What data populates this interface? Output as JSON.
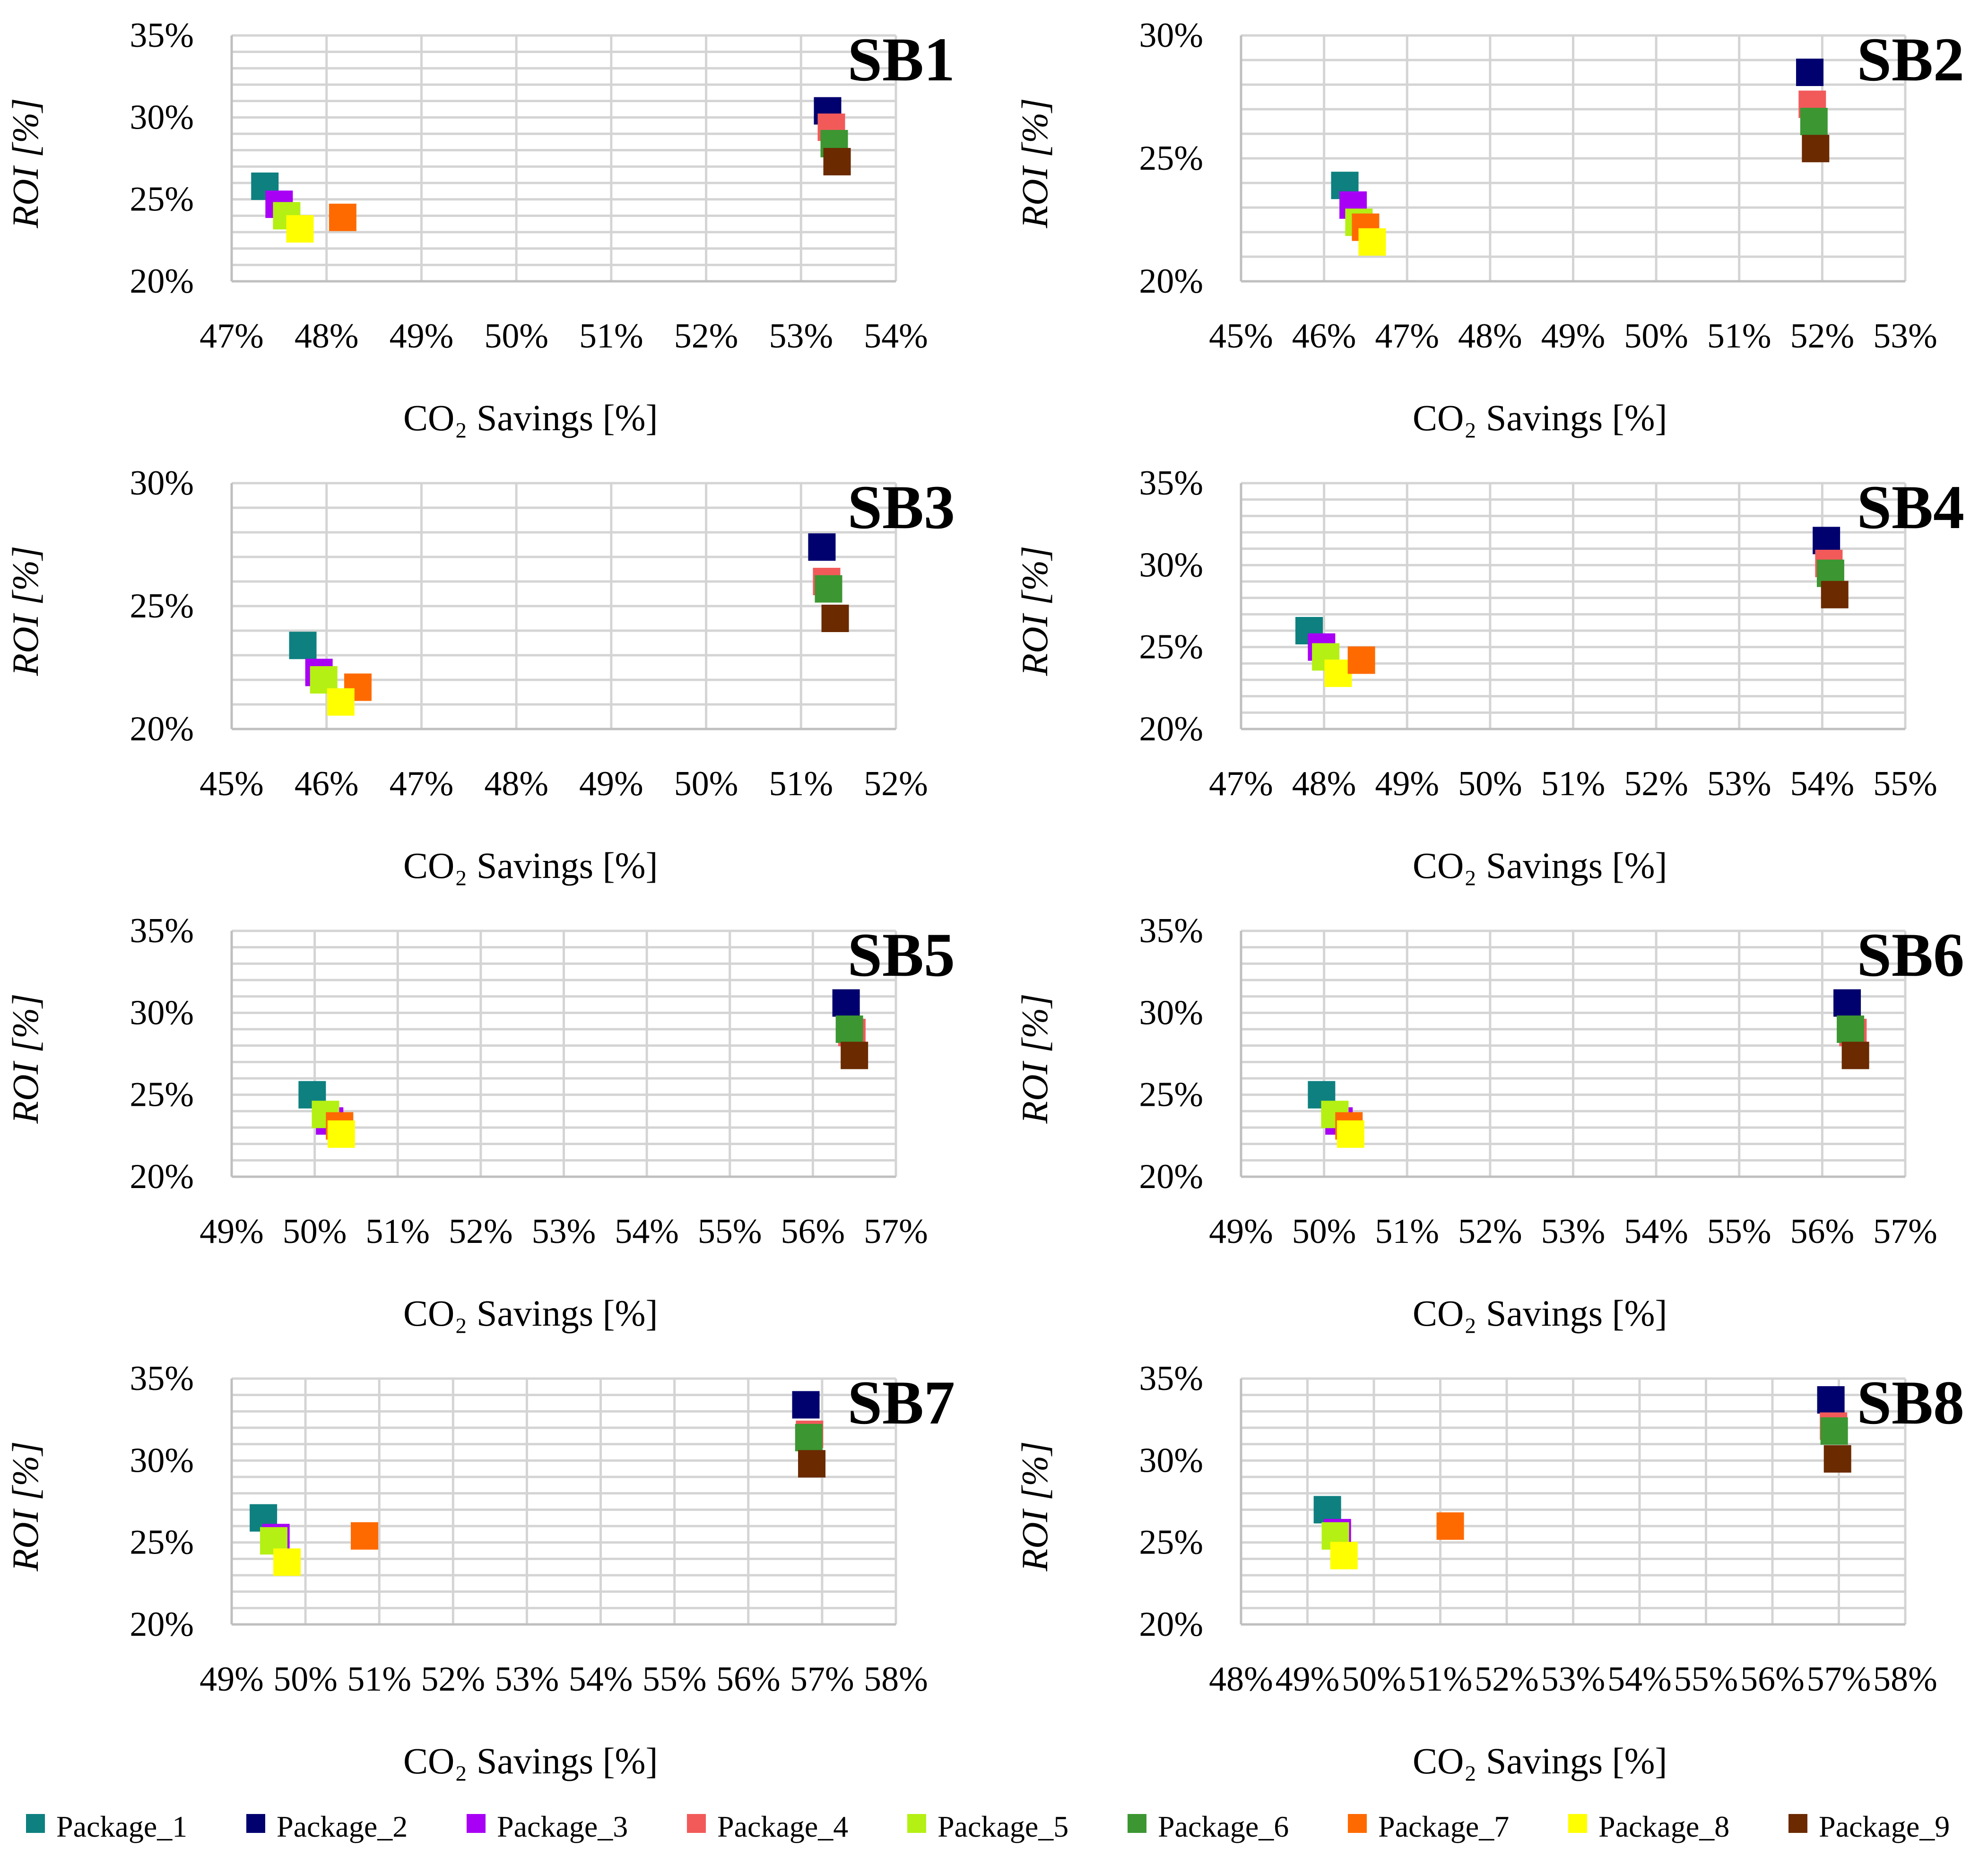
{
  "legend": [
    {
      "name": "Package_1",
      "color": "#0e8080"
    },
    {
      "name": "Package_2",
      "color": "#00006e"
    },
    {
      "name": "Package_3",
      "color": "#a800f5"
    },
    {
      "name": "Package_4",
      "color": "#f25a5a"
    },
    {
      "name": "Package_5",
      "color": "#b4f014"
    },
    {
      "name": "Package_6",
      "color": "#3c9632"
    },
    {
      "name": "Package_7",
      "color": "#ff6a00"
    },
    {
      "name": "Package_8",
      "color": "#ffff00"
    },
    {
      "name": "Package_9",
      "color": "#6b2a00"
    }
  ],
  "chart_data": [
    {
      "type": "scatter",
      "title": "SB1",
      "xlabel": "CO₂ Savings [%]",
      "ylabel": "ROI [%]",
      "xlim": [
        47,
        54
      ],
      "ylim": [
        20,
        35
      ],
      "xticks": [
        "47%",
        "48%",
        "49%",
        "50%",
        "51%",
        "52%",
        "53%",
        "54%"
      ],
      "yticks": [
        "20%",
        "25%",
        "30%",
        "35%"
      ],
      "series": [
        {
          "name": "Package_1",
          "x": 47.35,
          "y": 25.8
        },
        {
          "name": "Package_3",
          "x": 47.5,
          "y": 24.7
        },
        {
          "name": "Package_5",
          "x": 47.58,
          "y": 24.0
        },
        {
          "name": "Package_8",
          "x": 47.72,
          "y": 23.2
        },
        {
          "name": "Package_7",
          "x": 48.17,
          "y": 23.9
        },
        {
          "name": "Package_2",
          "x": 53.28,
          "y": 30.4
        },
        {
          "name": "Package_4",
          "x": 53.32,
          "y": 29.4
        },
        {
          "name": "Package_6",
          "x": 53.35,
          "y": 28.4
        },
        {
          "name": "Package_9",
          "x": 53.38,
          "y": 27.3
        }
      ]
    },
    {
      "type": "scatter",
      "title": "SB2",
      "xlabel": "CO₂ Savings [%]",
      "ylabel": "ROI [%]",
      "xlim": [
        45,
        53
      ],
      "ylim": [
        20,
        30
      ],
      "xticks": [
        "45%",
        "46%",
        "47%",
        "48%",
        "49%",
        "50%",
        "51%",
        "52%",
        "53%"
      ],
      "yticks": [
        "20%",
        "25%",
        "30%"
      ],
      "series": [
        {
          "name": "Package_1",
          "x": 46.25,
          "y": 23.9
        },
        {
          "name": "Package_3",
          "x": 46.35,
          "y": 23.1
        },
        {
          "name": "Package_5",
          "x": 46.42,
          "y": 22.4
        },
        {
          "name": "Package_7",
          "x": 46.5,
          "y": 22.2
        },
        {
          "name": "Package_8",
          "x": 46.58,
          "y": 21.6
        },
        {
          "name": "Package_2",
          "x": 51.85,
          "y": 28.5
        },
        {
          "name": "Package_4",
          "x": 51.88,
          "y": 27.2
        },
        {
          "name": "Package_6",
          "x": 51.9,
          "y": 26.5
        },
        {
          "name": "Package_9",
          "x": 51.92,
          "y": 25.4
        }
      ]
    },
    {
      "type": "scatter",
      "title": "SB3",
      "xlabel": "CO₂ Savings [%]",
      "ylabel": "ROI [%]",
      "xlim": [
        45,
        52
      ],
      "ylim": [
        20,
        30
      ],
      "xticks": [
        "45%",
        "46%",
        "47%",
        "48%",
        "49%",
        "50%",
        "51%",
        "52%"
      ],
      "yticks": [
        "20%",
        "25%",
        "30%"
      ],
      "series": [
        {
          "name": "Package_1",
          "x": 45.75,
          "y": 23.4
        },
        {
          "name": "Package_3",
          "x": 45.92,
          "y": 22.3
        },
        {
          "name": "Package_5",
          "x": 45.97,
          "y": 22.0
        },
        {
          "name": "Package_7",
          "x": 46.33,
          "y": 21.7
        },
        {
          "name": "Package_8",
          "x": 46.15,
          "y": 21.1
        },
        {
          "name": "Package_2",
          "x": 51.22,
          "y": 27.4
        },
        {
          "name": "Package_4",
          "x": 51.27,
          "y": 26.0
        },
        {
          "name": "Package_6",
          "x": 51.29,
          "y": 25.7
        },
        {
          "name": "Package_9",
          "x": 51.36,
          "y": 24.5
        }
      ]
    },
    {
      "type": "scatter",
      "title": "SB4",
      "xlabel": "CO₂ Savings [%]",
      "ylabel": "ROI [%]",
      "xlim": [
        47,
        55
      ],
      "ylim": [
        20,
        35
      ],
      "xticks": [
        "47%",
        "48%",
        "49%",
        "50%",
        "51%",
        "52%",
        "53%",
        "54%",
        "55%"
      ],
      "yticks": [
        "20%",
        "25%",
        "30%",
        "35%"
      ],
      "series": [
        {
          "name": "Package_1",
          "x": 47.82,
          "y": 26.0
        },
        {
          "name": "Package_3",
          "x": 47.97,
          "y": 25.0
        },
        {
          "name": "Package_5",
          "x": 48.02,
          "y": 24.4
        },
        {
          "name": "Package_8",
          "x": 48.17,
          "y": 23.4
        },
        {
          "name": "Package_7",
          "x": 48.45,
          "y": 24.2
        },
        {
          "name": "Package_2",
          "x": 54.05,
          "y": 31.5
        },
        {
          "name": "Package_4",
          "x": 54.08,
          "y": 30.1
        },
        {
          "name": "Package_6",
          "x": 54.1,
          "y": 29.5
        },
        {
          "name": "Package_9",
          "x": 54.15,
          "y": 28.2
        }
      ]
    },
    {
      "type": "scatter",
      "title": "SB5",
      "xlabel": "CO₂ Savings [%]",
      "ylabel": "ROI [%]",
      "xlim": [
        49,
        57
      ],
      "ylim": [
        20,
        35
      ],
      "xticks": [
        "49%",
        "50%",
        "51%",
        "52%",
        "53%",
        "54%",
        "55%",
        "56%",
        "57%"
      ],
      "yticks": [
        "20%",
        "25%",
        "30%",
        "35%"
      ],
      "series": [
        {
          "name": "Package_1",
          "x": 49.97,
          "y": 25.0
        },
        {
          "name": "Package_3",
          "x": 50.18,
          "y": 23.4
        },
        {
          "name": "Package_5",
          "x": 50.13,
          "y": 23.8
        },
        {
          "name": "Package_7",
          "x": 50.3,
          "y": 23.1
        },
        {
          "name": "Package_8",
          "x": 50.32,
          "y": 22.6
        },
        {
          "name": "Package_2",
          "x": 56.4,
          "y": 30.6
        },
        {
          "name": "Package_4",
          "x": 56.47,
          "y": 28.8
        },
        {
          "name": "Package_6",
          "x": 56.44,
          "y": 29.0
        },
        {
          "name": "Package_9",
          "x": 56.5,
          "y": 27.4
        }
      ]
    },
    {
      "type": "scatter",
      "title": "SB6",
      "xlabel": "CO₂ Savings [%]",
      "ylabel": "ROI [%]",
      "xlim": [
        49,
        57
      ],
      "ylim": [
        20,
        35
      ],
      "xticks": [
        "49%",
        "50%",
        "51%",
        "52%",
        "53%",
        "54%",
        "55%",
        "56%",
        "57%"
      ],
      "yticks": [
        "20%",
        "25%",
        "30%",
        "35%"
      ],
      "series": [
        {
          "name": "Package_1",
          "x": 49.97,
          "y": 25.0
        },
        {
          "name": "Package_3",
          "x": 50.18,
          "y": 23.4
        },
        {
          "name": "Package_5",
          "x": 50.13,
          "y": 23.8
        },
        {
          "name": "Package_7",
          "x": 50.3,
          "y": 23.1
        },
        {
          "name": "Package_8",
          "x": 50.32,
          "y": 22.6
        },
        {
          "name": "Package_2",
          "x": 56.3,
          "y": 30.6
        },
        {
          "name": "Package_4",
          "x": 56.37,
          "y": 28.8
        },
        {
          "name": "Package_6",
          "x": 56.34,
          "y": 29.0
        },
        {
          "name": "Package_9",
          "x": 56.4,
          "y": 27.4
        }
      ]
    },
    {
      "type": "scatter",
      "title": "SB7",
      "xlabel": "CO₂ Savings [%]",
      "ylabel": "ROI [%]",
      "xlim": [
        49,
        58
      ],
      "ylim": [
        20,
        35
      ],
      "xticks": [
        "49%",
        "50%",
        "51%",
        "52%",
        "53%",
        "54%",
        "55%",
        "56%",
        "57%",
        "58%"
      ],
      "yticks": [
        "20%",
        "25%",
        "30%",
        "35%"
      ],
      "series": [
        {
          "name": "Package_1",
          "x": 49.43,
          "y": 26.5
        },
        {
          "name": "Package_3",
          "x": 49.6,
          "y": 25.3
        },
        {
          "name": "Package_5",
          "x": 49.57,
          "y": 25.1
        },
        {
          "name": "Package_8",
          "x": 49.75,
          "y": 23.8
        },
        {
          "name": "Package_7",
          "x": 50.8,
          "y": 25.4
        },
        {
          "name": "Package_2",
          "x": 56.78,
          "y": 33.4
        },
        {
          "name": "Package_4",
          "x": 56.83,
          "y": 31.6
        },
        {
          "name": "Package_6",
          "x": 56.82,
          "y": 31.4
        },
        {
          "name": "Package_9",
          "x": 56.86,
          "y": 29.8
        }
      ]
    },
    {
      "type": "scatter",
      "title": "SB8",
      "xlabel": "CO₂ Savings [%]",
      "ylabel": "ROI [%]",
      "xlim": [
        48,
        58
      ],
      "ylim": [
        20,
        35
      ],
      "xticks": [
        "48%",
        "49%",
        "50%",
        "51%",
        "52%",
        "53%",
        "54%",
        "55%",
        "56%",
        "57%",
        "58%"
      ],
      "yticks": [
        "20%",
        "25%",
        "30%",
        "35%"
      ],
      "series": [
        {
          "name": "Package_1",
          "x": 49.3,
          "y": 27.0
        },
        {
          "name": "Package_3",
          "x": 49.45,
          "y": 25.6
        },
        {
          "name": "Package_5",
          "x": 49.42,
          "y": 25.4
        },
        {
          "name": "Package_8",
          "x": 49.55,
          "y": 24.2
        },
        {
          "name": "Package_7",
          "x": 51.15,
          "y": 26.0
        },
        {
          "name": "Package_2",
          "x": 56.88,
          "y": 33.7
        },
        {
          "name": "Package_4",
          "x": 56.92,
          "y": 32.1
        },
        {
          "name": "Package_6",
          "x": 56.93,
          "y": 31.8
        },
        {
          "name": "Package_9",
          "x": 56.98,
          "y": 30.1
        }
      ]
    }
  ]
}
